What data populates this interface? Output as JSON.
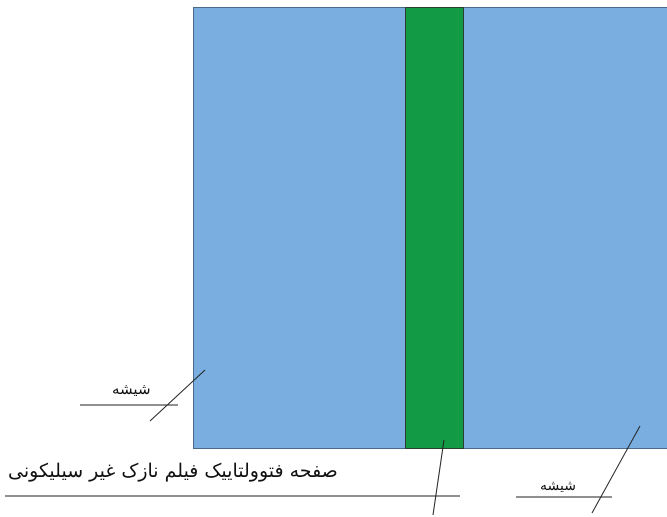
{
  "labels": {
    "glass_left": "شیشه",
    "film": "صفحه فتوولتاییک فیلم نازک غیر سیلیکونی",
    "glass_right": "شیشه"
  },
  "colors": {
    "glass": "#7aaee0",
    "film": "#139a45",
    "line": "#222222"
  }
}
